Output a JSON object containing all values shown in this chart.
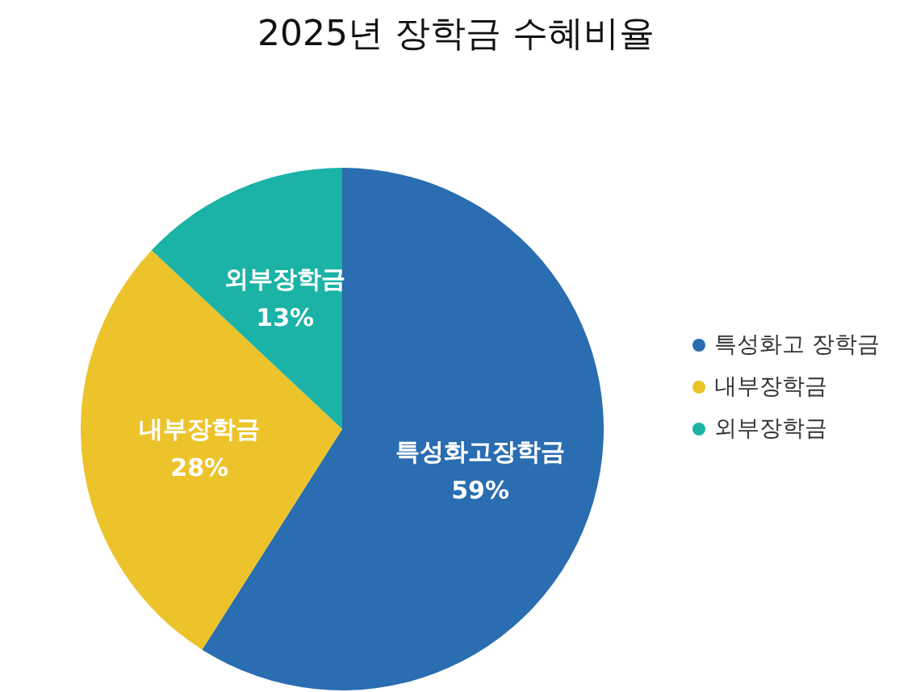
{
  "chart_data": {
    "type": "pie",
    "title": "2025년 장학금 수혜비율",
    "categories": [
      "특성화고 장학금",
      "내부장학금",
      "외부장학금"
    ],
    "values": [
      59,
      28,
      13
    ],
    "colors": [
      "#2a6db0",
      "#ecc32a",
      "#1ab3a6"
    ],
    "value_labels": [
      "특성화고장학금\n59%",
      "내부장학금\n28%",
      "외부장학금\n13%"
    ],
    "legend": "right"
  }
}
